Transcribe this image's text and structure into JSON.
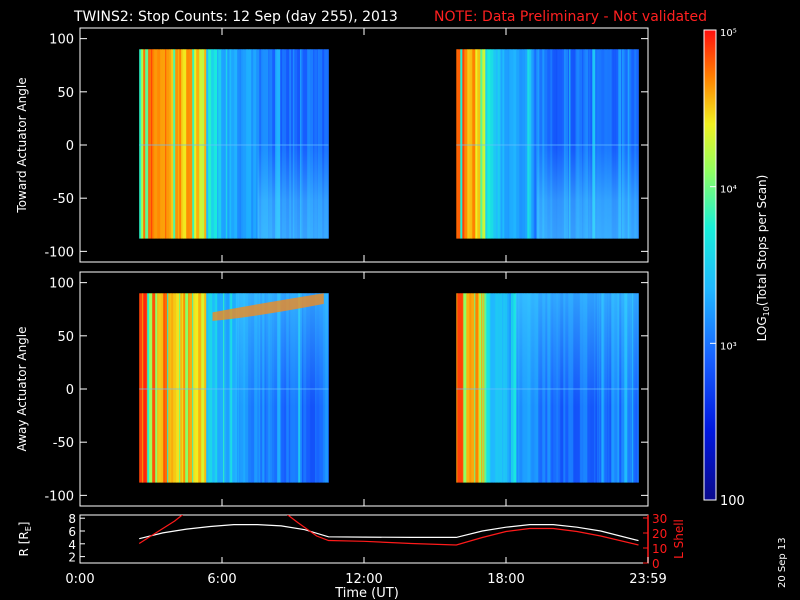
{
  "header": {
    "title": "TWINS2: Stop Counts: 12 Sep (day 255), 2013",
    "note": "NOTE: Data Preliminary - Not validated"
  },
  "side_stamp": "20 Sep 13",
  "colors": {
    "note": "#ff2020",
    "background": "#000000",
    "axes": "#ffffff",
    "lshell": "#ff1a1a",
    "radius": "#ffffff"
  },
  "colorbar": {
    "label": "LOG10(Total Stops per Scan)",
    "label_main": "LOG",
    "label_sub": "10",
    "label_rest": "(Total Stops per Scan)",
    "ticks": [
      {
        "text": "100",
        "value": 100
      },
      {
        "text": "10³",
        "value": 1000
      },
      {
        "text": "10⁴",
        "value": 10000
      },
      {
        "text": "10⁵",
        "value": 100000
      }
    ],
    "range": [
      100,
      100000
    ],
    "scale": "log"
  },
  "time_axis": {
    "title": "Time (UT)",
    "ticks": [
      "0:00",
      "6:00",
      "12:00",
      "18:00",
      "23:59"
    ],
    "tick_hours": [
      0,
      6,
      12,
      18,
      24
    ]
  },
  "chart_data": [
    {
      "type": "heatmap",
      "ylabel": "Toward Actuator Angle",
      "ylim": [
        -110,
        110
      ],
      "yticks": [
        "100",
        "50",
        "0",
        "-50",
        "-100"
      ],
      "ytick_values": [
        100,
        50,
        0,
        -50,
        -100
      ],
      "data_range_y": [
        -88,
        90
      ],
      "segments_hours": [
        [
          2.5,
          10.5
        ],
        [
          15.9,
          23.6
        ]
      ],
      "hot_bands_hours": [
        [
          2.5,
          5.3
        ],
        [
          15.9,
          17.1
        ]
      ]
    },
    {
      "type": "heatmap",
      "ylabel": "Away Actuator Angle",
      "ylim": [
        -110,
        110
      ],
      "yticks": [
        "100",
        "50",
        "0",
        "-50",
        "-100"
      ],
      "ytick_values": [
        100,
        50,
        0,
        -50,
        -100
      ],
      "data_range_y": [
        -88,
        90
      ],
      "segments_hours": [
        [
          2.5,
          10.5
        ],
        [
          15.9,
          23.6
        ]
      ],
      "hot_bands_hours": [
        [
          2.5,
          5.3
        ],
        [
          15.9,
          17.1
        ]
      ]
    },
    {
      "type": "line",
      "ylabel_left": "R [RE]",
      "ylabel_left_main": "R [R",
      "ylabel_left_sub": "E",
      "ylabel_left_end": "]",
      "ylabel_right": "L Shell",
      "left_ticks": [
        "2",
        "4",
        "6",
        "8"
      ],
      "left_tick_values": [
        2,
        4,
        6,
        8
      ],
      "left_ylim": [
        1,
        8.5
      ],
      "right_ticks": [
        "0",
        "10",
        "20",
        "30"
      ],
      "right_tick_values": [
        0,
        10,
        20,
        30
      ],
      "right_ylim": [
        0,
        32
      ],
      "series": [
        {
          "name": "R",
          "x": [
            2.5,
            3.5,
            4.5,
            5.5,
            6.5,
            7.5,
            8.5,
            9.5,
            10.5,
            12,
            14,
            15.9,
            17,
            18,
            19,
            20,
            21,
            22,
            23.6
          ],
          "y": [
            4.8,
            5.7,
            6.3,
            6.7,
            7.0,
            7.0,
            6.8,
            6.2,
            5.1,
            5.05,
            5.0,
            5.0,
            6.0,
            6.6,
            7.0,
            7.0,
            6.6,
            6.0,
            4.5
          ]
        },
        {
          "name": "L Shell",
          "x": [
            2.5,
            3.2,
            4.0,
            4.4,
            8.7,
            9.2,
            10.0,
            10.5,
            12,
            14,
            15.9,
            17,
            18,
            19,
            20,
            21,
            22,
            23.6
          ],
          "y": [
            13,
            20,
            28,
            33,
            33,
            27,
            18,
            15,
            14.5,
            13,
            12,
            17,
            21,
            23,
            23,
            21,
            18,
            12
          ]
        }
      ]
    }
  ]
}
